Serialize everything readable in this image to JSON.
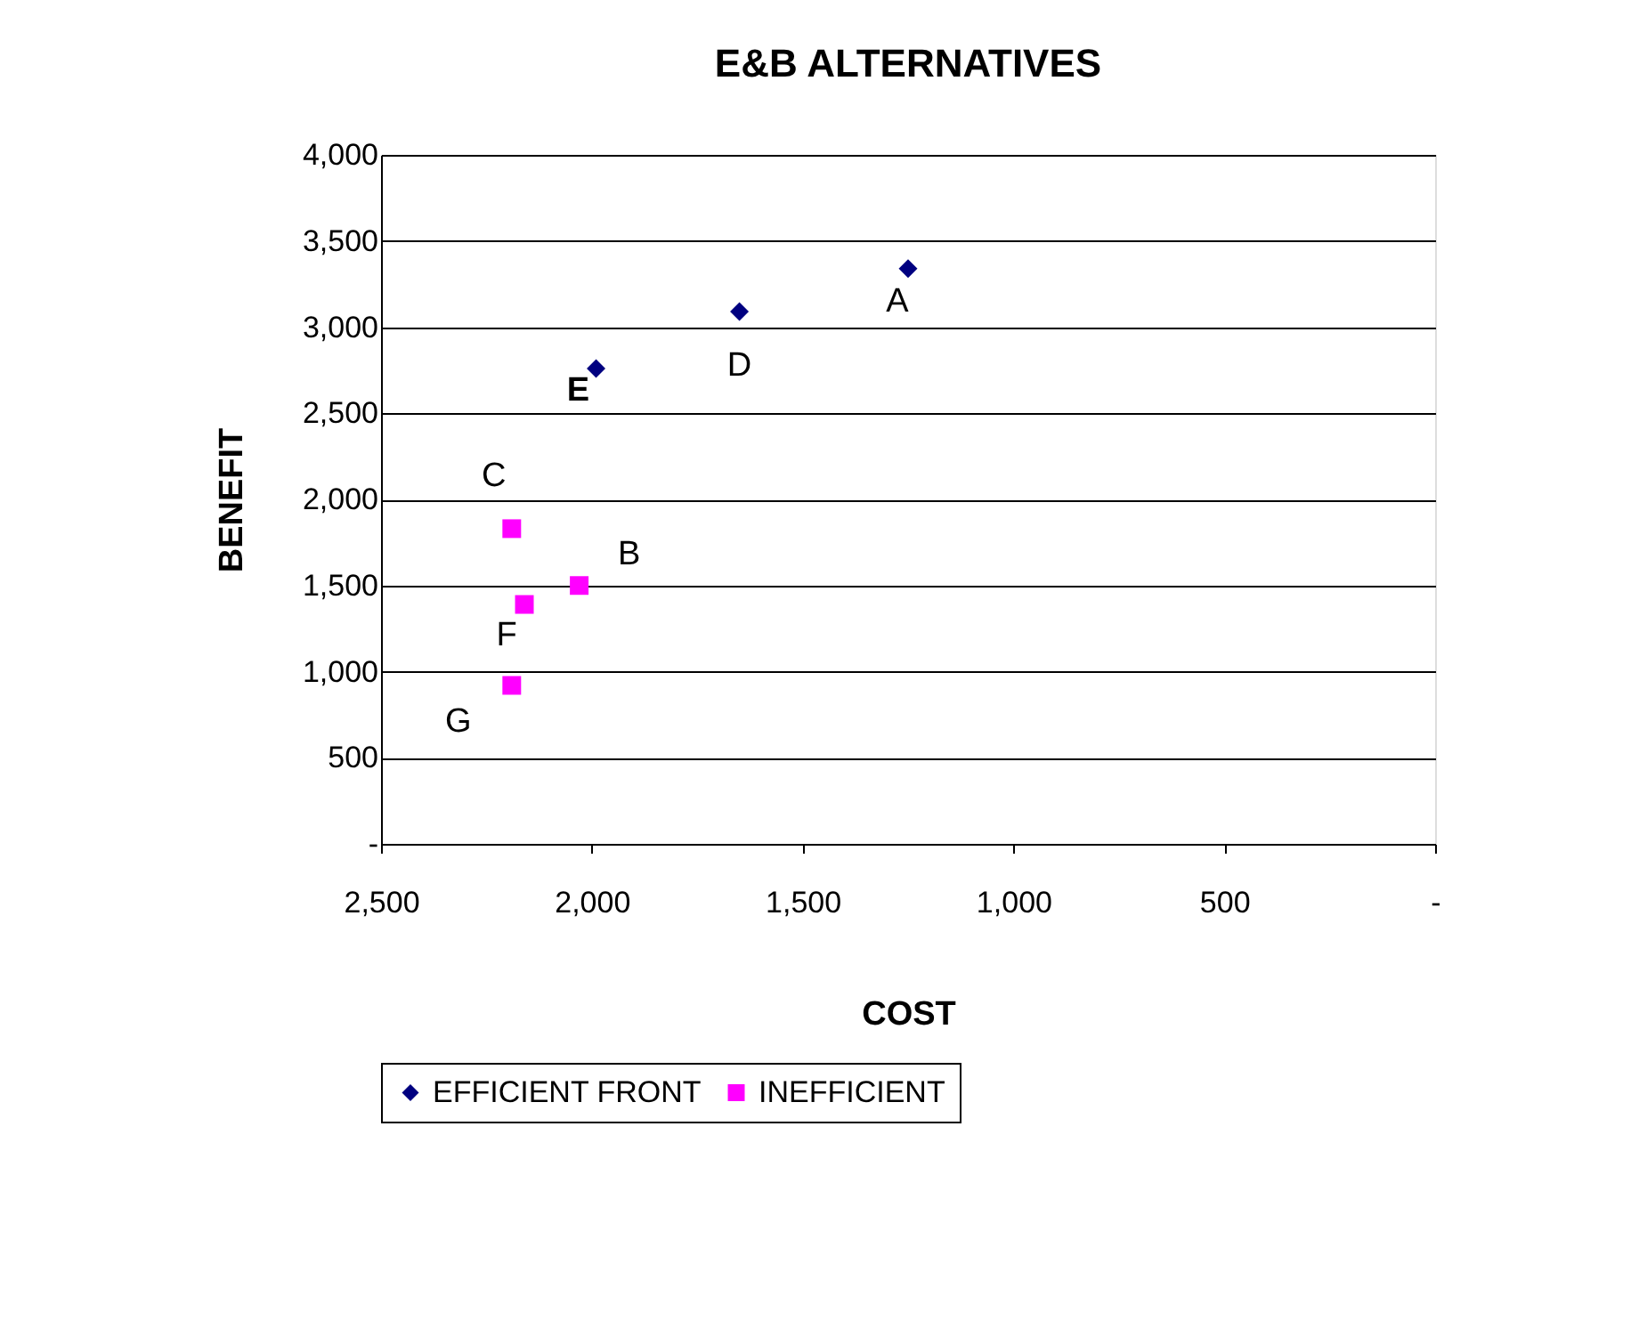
{
  "chart_data": {
    "type": "scatter",
    "title": "E&B ALTERNATIVES",
    "xlabel": "COST",
    "ylabel": "BENEFIT",
    "series": [
      {
        "name": "EFFICIENT FRONT",
        "color": "#000080",
        "marker": "diamond",
        "x": [
          1250,
          1650,
          1990
        ],
        "values": [
          3340,
          3090,
          2760
        ]
      },
      {
        "name": "INEFFICIENT",
        "color": "#ff00ff",
        "marker": "square",
        "x": [
          2190,
          2030,
          2160,
          2190
        ],
        "values": [
          1830,
          1500,
          1390,
          920
        ]
      }
    ],
    "annotations": [
      {
        "text": "A",
        "x": 1250,
        "y": 3340
      },
      {
        "text": "D",
        "x": 1650,
        "y": 3090
      },
      {
        "text": "E",
        "x": 1990,
        "y": 2760
      },
      {
        "text": "C",
        "x": 2190,
        "y": 1830
      },
      {
        "text": "B",
        "x": 2030,
        "y": 1500
      },
      {
        "text": "F",
        "x": 2160,
        "y": 1390
      },
      {
        "text": "G",
        "x": 2190,
        "y": 920
      }
    ],
    "xlim": [
      2500,
      0
    ],
    "xticks": [
      {
        "value": 2500,
        "label": "2,500"
      },
      {
        "value": 2000,
        "label": "2,000"
      },
      {
        "value": 1500,
        "label": "1,500"
      },
      {
        "value": 1000,
        "label": "1,000"
      },
      500,
      {
        "value": 0,
        "label": "-"
      }
    ],
    "ylim": [
      0,
      4000
    ],
    "yticks": [
      {
        "value": 0,
        "label": "-"
      },
      500,
      {
        "value": 1000,
        "label": "1,000"
      },
      {
        "value": 1500,
        "label": "1,500"
      },
      {
        "value": 2000,
        "label": "2,000"
      },
      {
        "value": 2500,
        "label": "2,500"
      },
      {
        "value": 3000,
        "label": "3,000"
      },
      {
        "value": 3500,
        "label": "3,500"
      },
      {
        "value": 4000,
        "label": "4,000"
      }
    ],
    "grid": "y",
    "legend": "bottom"
  }
}
